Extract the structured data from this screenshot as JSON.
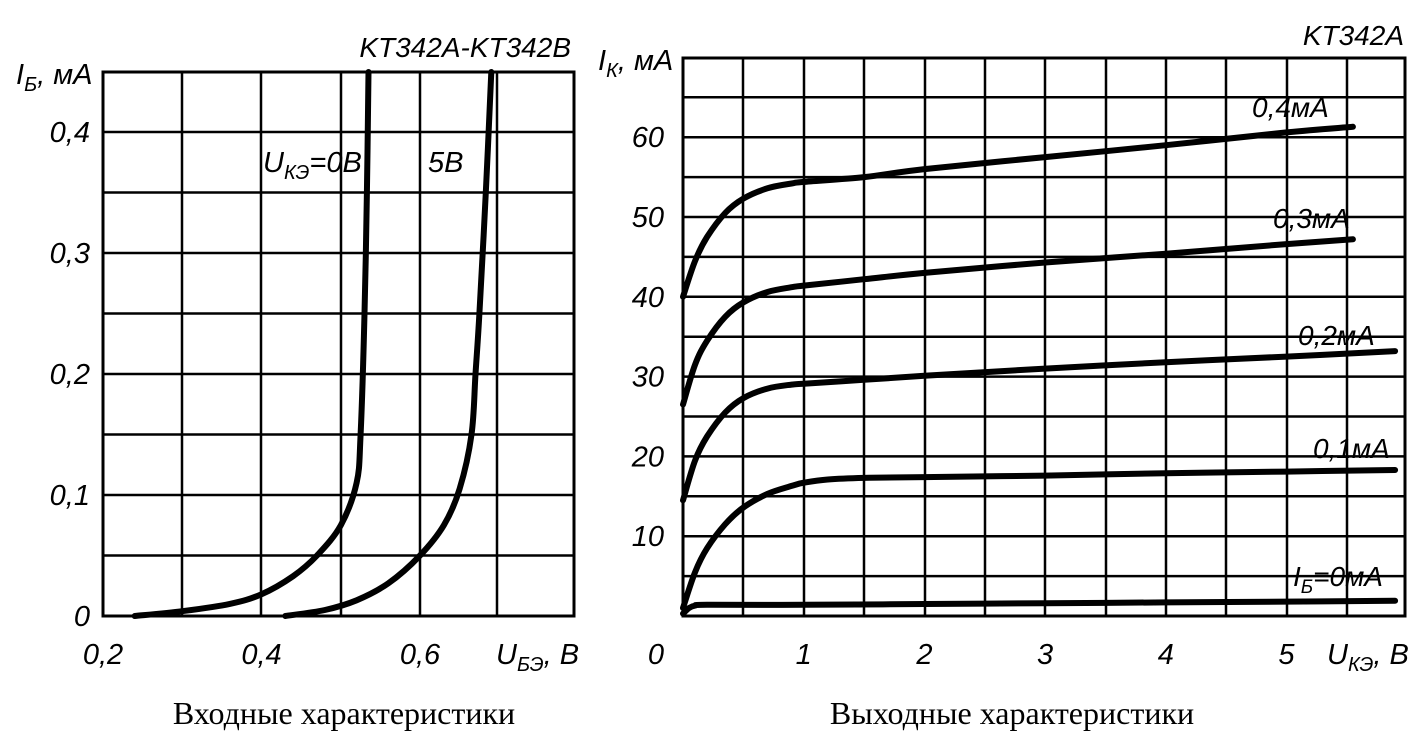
{
  "chart_data": [
    {
      "type": "line",
      "title": "KT342A-KT342B",
      "caption": "Входные характеристики",
      "ylabel": "I",
      "ylabel_sub": "Б",
      "ylabel_unit": ", мА",
      "xlabel": "U",
      "xlabel_sub": "БЭ",
      "xlabel_unit": ", В",
      "xlim": [
        0.2,
        1.0
      ],
      "ylim": [
        0,
        0.45
      ],
      "x_ticks": [
        0.2,
        0.4,
        0.6
      ],
      "x_tick_labels": [
        "0,2",
        "0,4",
        "0,6"
      ],
      "y_ticks": [
        0,
        0.1,
        0.2,
        0.3,
        0.4
      ],
      "y_tick_labels": [
        "0",
        "0,1",
        "0,2",
        "0,3",
        "0,4"
      ],
      "grid": true,
      "series": [
        {
          "label_main": "U",
          "label_sub": "КЭ",
          "label_rest": "=0В",
          "x": [
            0.24,
            0.3,
            0.36,
            0.4,
            0.44,
            0.47,
            0.5,
            0.52,
            0.525,
            0.53,
            0.533,
            0.535
          ],
          "y": [
            0.0,
            0.004,
            0.01,
            0.018,
            0.033,
            0.05,
            0.075,
            0.11,
            0.15,
            0.25,
            0.35,
            0.45
          ]
        },
        {
          "label_main": "5В",
          "x": [
            0.43,
            0.48,
            0.52,
            0.56,
            0.6,
            0.63,
            0.65,
            0.665,
            0.67,
            0.675,
            0.683,
            0.69
          ],
          "y": [
            0.0,
            0.005,
            0.013,
            0.027,
            0.05,
            0.075,
            0.105,
            0.15,
            0.2,
            0.25,
            0.35,
            0.45
          ]
        }
      ]
    },
    {
      "type": "line",
      "title": "KT342A",
      "caption": "Выходные характеристики",
      "ylabel": "I",
      "ylabel_sub": "К",
      "ylabel_unit": ", мА",
      "xlabel": "U",
      "xlabel_sub": "КЭ",
      "xlabel_unit": ", В",
      "xlim": [
        0,
        6
      ],
      "ylim": [
        0,
        70
      ],
      "x_ticks": [
        0,
        1,
        2,
        3,
        4,
        5
      ],
      "x_tick_labels": [
        "0",
        "1",
        "2",
        "3",
        "4",
        "5"
      ],
      "y_ticks": [
        10,
        20,
        30,
        40,
        50,
        60
      ],
      "y_tick_labels": [
        "10",
        "20",
        "30",
        "40",
        "50",
        "60"
      ],
      "grid": true,
      "series": [
        {
          "label_main": "0,4мА",
          "x": [
            0,
            0.1,
            0.2,
            0.35,
            0.5,
            0.7,
            0.9,
            1.0,
            1.5,
            2,
            3,
            4,
            5,
            5.55
          ],
          "y": [
            40,
            44.5,
            47.5,
            50.5,
            52.3,
            53.6,
            54.2,
            54.4,
            55.0,
            56.0,
            57.5,
            59.0,
            60.6,
            61.3
          ]
        },
        {
          "label_main": "0,3мА",
          "x": [
            0,
            0.1,
            0.2,
            0.35,
            0.5,
            0.7,
            0.9,
            1.0,
            1.5,
            2,
            3,
            4,
            5,
            5.55
          ],
          "y": [
            26.5,
            31.5,
            34.5,
            37.5,
            39.3,
            40.6,
            41.2,
            41.4,
            42.2,
            43.0,
            44.3,
            45.4,
            46.6,
            47.2
          ]
        },
        {
          "label_main": "0,2мА",
          "x": [
            0,
            0.1,
            0.2,
            0.35,
            0.5,
            0.7,
            0.9,
            1.0,
            1.5,
            2,
            3,
            4,
            5,
            5.9
          ],
          "y": [
            14.5,
            19.5,
            22.5,
            25.5,
            27.3,
            28.5,
            29.0,
            29.1,
            29.6,
            30.1,
            31.0,
            31.8,
            32.5,
            33.2
          ]
        },
        {
          "label_main": "0,1мА",
          "x": [
            0,
            0.1,
            0.2,
            0.35,
            0.5,
            0.7,
            0.9,
            1.0,
            1.2,
            1.5,
            2,
            3,
            4,
            5,
            5.9
          ],
          "y": [
            1.0,
            5.5,
            8.5,
            11.5,
            13.6,
            15.3,
            16.3,
            16.7,
            17.1,
            17.3,
            17.4,
            17.6,
            17.9,
            18.1,
            18.3
          ]
        },
        {
          "label_main": "I",
          "label_sub": "Б",
          "label_rest": "=0мА",
          "x": [
            0,
            0.05,
            0.1,
            0.2,
            1,
            2,
            3,
            4,
            5,
            5.9
          ],
          "y": [
            0.3,
            1.0,
            1.3,
            1.4,
            1.4,
            1.5,
            1.6,
            1.7,
            1.8,
            1.9
          ]
        }
      ]
    }
  ]
}
